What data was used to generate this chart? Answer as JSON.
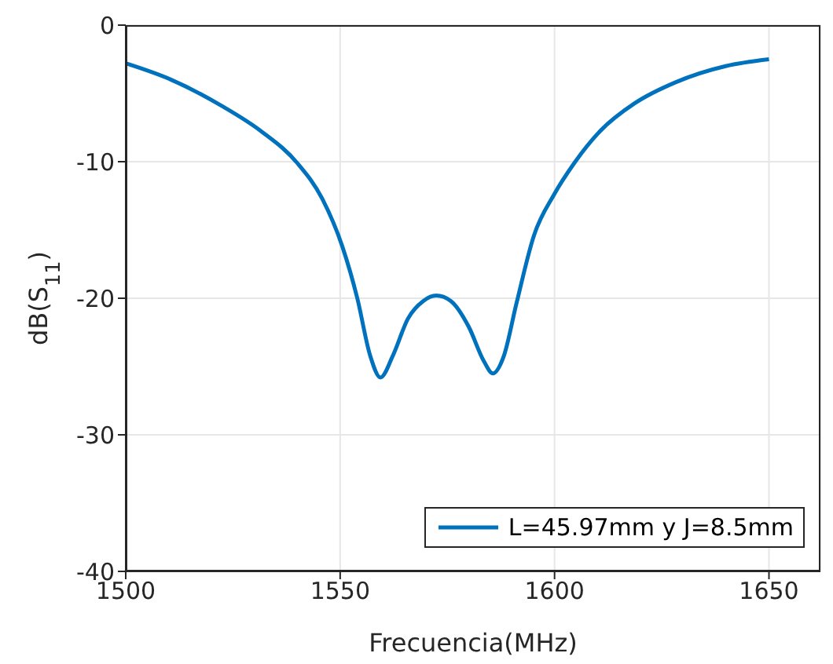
{
  "chart_data": {
    "type": "line",
    "xlabel": "Frecuencia(MHz)",
    "ylabel": "dB(S$_{11}$)",
    "x": [
      1500,
      1510.6,
      1522.3,
      1531.7,
      1540,
      1545.8,
      1550.5,
      1554,
      1557,
      1559.4,
      1562.3,
      1565.8,
      1569.4,
      1572.4,
      1575.8,
      1580,
      1583.5,
      1585.6,
      1588.2,
      1591.1,
      1595.2,
      1599.9,
      1604.6,
      1610.5,
      1618.8,
      1628.1,
      1639.9,
      1650
    ],
    "series": [
      {
        "name": "L=45.97mm y J=8.5mm",
        "color": "#0072bd",
        "values": [
          -2.8,
          -4.0,
          -5.9,
          -7.8,
          -10.1,
          -12.7,
          -16.2,
          -20.0,
          -24.2,
          -25.8,
          -24.2,
          -21.5,
          -20.2,
          -19.8,
          -20.2,
          -22.1,
          -24.6,
          -25.5,
          -24.2,
          -20.4,
          -15.4,
          -12.4,
          -10.1,
          -7.8,
          -5.7,
          -4.2,
          -3.0,
          -2.5
        ]
      }
    ],
    "xlim": [
      1500,
      1662
    ],
    "xticks": [
      1500,
      1550,
      1600,
      1650
    ],
    "ylim": [
      -40,
      0
    ],
    "yticks": [
      -40,
      -30,
      -20,
      -10,
      0
    ],
    "grid": true,
    "legend": "bottom right",
    "marker": "none",
    "line_style": "solid"
  }
}
